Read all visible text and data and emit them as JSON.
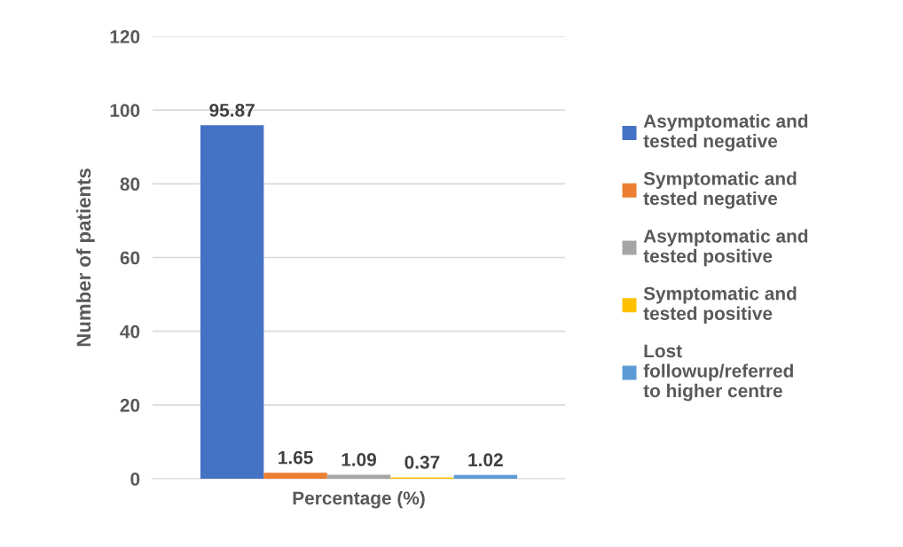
{
  "chart_data": {
    "type": "bar",
    "ylabel": "Number of patients",
    "categories": [
      "Percentage (%)"
    ],
    "series": [
      {
        "name": "Asymptomatic and tested negative",
        "color": "#4472c4",
        "values": [
          95.87
        ]
      },
      {
        "name": "Symptomatic and tested negative",
        "color": "#ed7d31",
        "values": [
          1.65
        ]
      },
      {
        "name": "Asymptomatic and tested positive",
        "color": "#a5a5a5",
        "values": [
          1.09
        ]
      },
      {
        "name": "Symptomatic and tested positive",
        "color": "#ffc000",
        "values": [
          0.37
        ]
      },
      {
        "name": "Lost followup/referred to higher centre",
        "color": "#5b9bd5",
        "values": [
          1.02
        ]
      }
    ],
    "ylim": [
      0,
      120
    ],
    "yticks": [
      0,
      20,
      40,
      60,
      80,
      100,
      120
    ],
    "grid": "y",
    "legend": "right",
    "data_labels": true
  }
}
